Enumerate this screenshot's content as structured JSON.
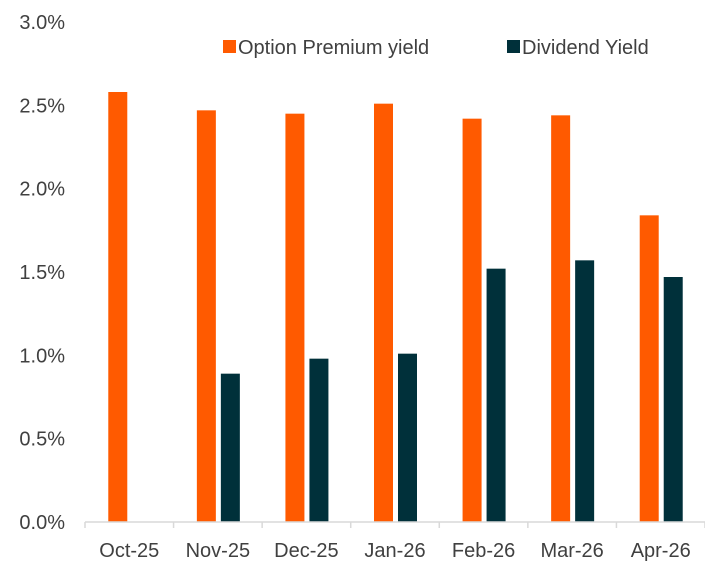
{
  "chart_data": {
    "type": "bar",
    "title": "",
    "xlabel": "",
    "ylabel": "",
    "categories": [
      "Oct-25",
      "Nov-25",
      "Dec-25",
      "Jan-26",
      "Feb-26",
      "Mar-26",
      "Apr-26"
    ],
    "series": [
      {
        "name": "Option Premium yield",
        "color": "#ff5a00",
        "values": [
          2.58,
          2.47,
          2.45,
          2.51,
          2.42,
          2.44,
          1.84
        ]
      },
      {
        "name": "Dividend Yield",
        "color": "#00303a",
        "values": [
          null,
          0.89,
          0.98,
          1.01,
          1.52,
          1.57,
          1.47
        ]
      }
    ],
    "ylim": [
      0,
      3.0
    ],
    "yticks": [
      "0.0%",
      "0.5%",
      "1.0%",
      "1.5%",
      "2.0%",
      "2.5%",
      "3.0%"
    ],
    "ytick_values": [
      0,
      0.5,
      1.0,
      1.5,
      2.0,
      2.5,
      3.0
    ],
    "grid": false,
    "legend_position": "top-right"
  }
}
